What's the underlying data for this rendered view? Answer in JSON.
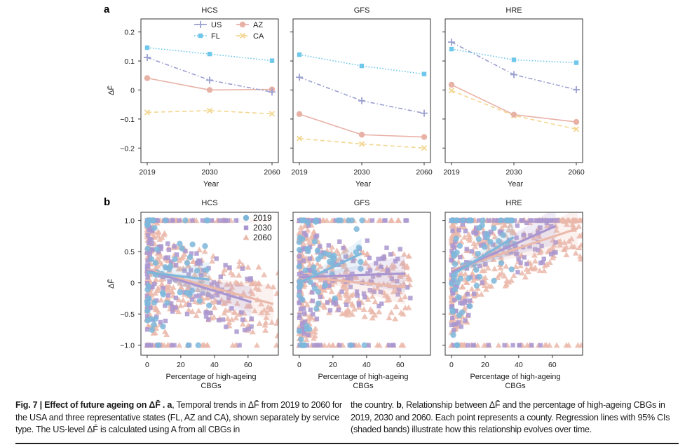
{
  "chart_data": [
    {
      "panel": "a",
      "type": "line",
      "subplots": [
        {
          "title": "HCS",
          "x": [
            "2019",
            "2030",
            "2060"
          ],
          "series": [
            {
              "name": "US",
              "values": [
                0.112,
                0.034,
                -0.007
              ]
            },
            {
              "name": "FL",
              "values": [
                0.146,
                0.124,
                0.101
              ]
            },
            {
              "name": "AZ",
              "values": [
                0.041,
                0.0,
                0.002
              ]
            },
            {
              "name": "CA",
              "values": [
                -0.077,
                -0.071,
                -0.082
              ]
            }
          ]
        },
        {
          "title": "GFS",
          "x": [
            "2019",
            "2030",
            "2060"
          ],
          "series": [
            {
              "name": "US",
              "values": [
                0.044,
                -0.037,
                -0.08
              ]
            },
            {
              "name": "FL",
              "values": [
                0.122,
                0.083,
                0.055
              ]
            },
            {
              "name": "AZ",
              "values": [
                -0.083,
                -0.154,
                -0.162
              ]
            },
            {
              "name": "CA",
              "values": [
                -0.167,
                -0.186,
                -0.2
              ]
            }
          ]
        },
        {
          "title": "HRE",
          "x": [
            "2019",
            "2030",
            "2060"
          ],
          "series": [
            {
              "name": "US",
              "values": [
                0.165,
                0.053,
                0.001
              ]
            },
            {
              "name": "FL",
              "values": [
                0.141,
                0.104,
                0.094
              ]
            },
            {
              "name": "AZ",
              "values": [
                0.018,
                -0.085,
                -0.11
              ]
            },
            {
              "name": "CA",
              "values": [
                -0.002,
                -0.088,
                -0.135
              ]
            }
          ]
        }
      ],
      "xlabel": "Year",
      "ylabel": "ΔF̄",
      "ylim": [
        -0.25,
        0.245
      ],
      "yticks": [
        0.2,
        0.1,
        0,
        -0.1,
        -0.2
      ],
      "ytick_labels": [
        "0.2",
        "0.1",
        "0",
        "−0.1",
        "−0.2"
      ],
      "legend": {
        "placement": "top-right of first subplot",
        "entries": [
          "US",
          "FL",
          "AZ",
          "CA"
        ]
      },
      "series_styles": {
        "US": {
          "color": "#9a9fd0",
          "marker": "plus",
          "dash": "dashdot"
        },
        "FL": {
          "color": "#6fc7ea",
          "marker": "square",
          "dash": "dotted"
        },
        "AZ": {
          "color": "#e8b1a6",
          "marker": "circle",
          "dash": "solid"
        },
        "CA": {
          "color": "#f3d68f",
          "marker": "x",
          "dash": "dashed"
        }
      },
      "grid": false
    },
    {
      "panel": "b",
      "type": "scatter",
      "subplots": [
        {
          "title": "HCS",
          "regressions": [
            {
              "name": "2019",
              "x": [
                0,
                37
              ],
              "y": [
                0.17,
                0.05
              ],
              "ci_halfwidth": [
                0.06,
                0.28
              ]
            },
            {
              "name": "2030",
              "x": [
                0,
                62
              ],
              "y": [
                0.2,
                -0.31
              ],
              "ci_halfwidth": [
                0.04,
                0.25
              ]
            },
            {
              "name": "2060",
              "x": [
                0,
                75
              ],
              "y": [
                0.21,
                -0.34
              ],
              "ci_halfwidth": [
                0.03,
                0.3
              ]
            }
          ]
        },
        {
          "title": "GFS",
          "regressions": [
            {
              "name": "2019",
              "x": [
                0,
                37
              ],
              "y": [
                0.0,
                0.47
              ],
              "ci_halfwidth": [
                0.05,
                0.24
              ]
            },
            {
              "name": "2030",
              "x": [
                0,
                63
              ],
              "y": [
                0.09,
                0.15
              ],
              "ci_halfwidth": [
                0.04,
                0.3
              ]
            },
            {
              "name": "2060",
              "x": [
                0,
                63
              ],
              "y": [
                0.1,
                -0.07
              ],
              "ci_halfwidth": [
                0.03,
                0.28
              ]
            }
          ]
        },
        {
          "title": "HRE",
          "regressions": [
            {
              "name": "2019",
              "x": [
                0,
                37
              ],
              "y": [
                0.12,
                0.73
              ],
              "ci_halfwidth": [
                0.05,
                0.26
              ]
            },
            {
              "name": "2030",
              "x": [
                0,
                62
              ],
              "y": [
                0.17,
                0.91
              ],
              "ci_halfwidth": [
                0.04,
                0.3
              ]
            },
            {
              "name": "2060",
              "x": [
                0,
                75
              ],
              "y": [
                0.2,
                0.87
              ],
              "ci_halfwidth": [
                0.03,
                0.32
              ]
            }
          ]
        }
      ],
      "xlabel": "Percentage of high-ageing CBGs",
      "ylabel": "ΔF̄",
      "xlim": [
        -3.7,
        78
      ],
      "ylim": [
        -1.16,
        1.13
      ],
      "xticks": [
        0,
        20,
        40,
        60
      ],
      "yticks": [
        1.0,
        0.5,
        0,
        -0.5,
        -1.0
      ],
      "ytick_labels": [
        "1.0",
        "0.5",
        "0",
        "−0.5",
        "−1.0"
      ],
      "legend": {
        "placement": "top-right of first subplot",
        "entries": [
          "2019",
          "2030",
          "2060"
        ]
      },
      "series_styles": {
        "2019": {
          "color": "#7db7da",
          "marker": "circle"
        },
        "2030": {
          "color": "#a996d0",
          "marker": "square"
        },
        "2060": {
          "color": "#ebb9aa",
          "marker": "triangle"
        }
      },
      "note": "Each point represents a county; dense clusters near x=0–20 spanning y=−1.0 to 1.0",
      "grid": false
    }
  ],
  "figure": {
    "panel_labels": [
      "a",
      "b"
    ],
    "caption_left": {
      "fig_label": "Fig. 7 | Effect of future ageing on ΔF̄ .",
      "panel_a_label": "a",
      "text": ", Temporal trends in ΔF̄ from 2019 to 2060 for the USA and three representative states (FL, AZ and CA), shown separately by service type. The US-level ΔF̄ is calculated using A from all CBGs in"
    },
    "caption_right": {
      "lead": "the country. ",
      "panel_b_label": "b",
      "text": ", Relationship between ΔF̄ and the percentage of high-ageing CBGs in 2019, 2030 and 2060. Each point represents a county. Regression lines with 95% CIs (shaded bands) illustrate how this relationship evolves over time."
    }
  }
}
